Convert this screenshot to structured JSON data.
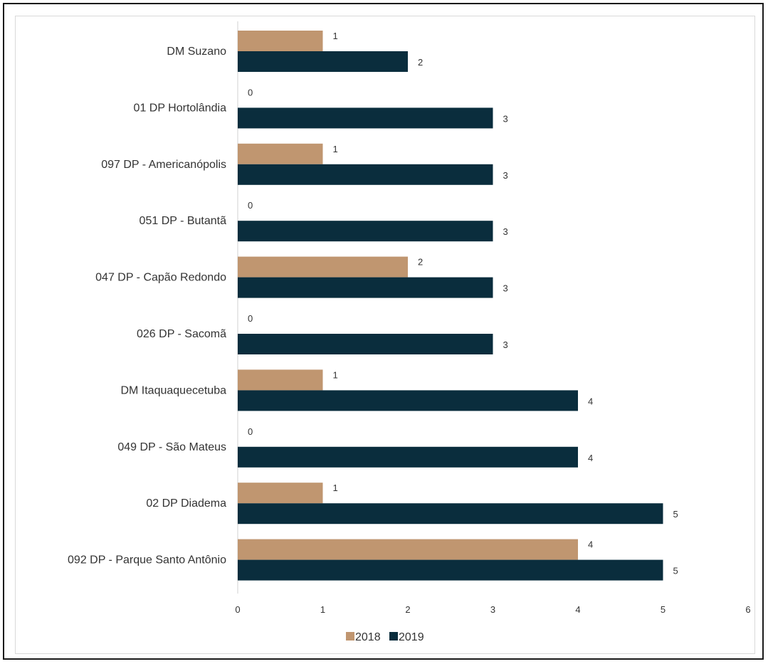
{
  "chart_data": {
    "type": "bar",
    "orientation": "horizontal",
    "categories": [
      "DM Suzano",
      "01 DP Hortolândia",
      "097 DP - Americanópolis",
      "051 DP - Butantã",
      "047 DP - Capão Redondo",
      "026 DP - Sacomã",
      "DM Itaquaquecetuba",
      "049 DP - São Mateus",
      "02 DP Diadema",
      "092 DP - Parque Santo Antônio"
    ],
    "series": [
      {
        "name": "2018",
        "color": "#c09670",
        "values": [
          1,
          0,
          1,
          0,
          2,
          0,
          1,
          0,
          1,
          4
        ]
      },
      {
        "name": "2019",
        "color": "#0a2d3d",
        "values": [
          2,
          3,
          3,
          3,
          3,
          3,
          4,
          4,
          5,
          5
        ]
      }
    ],
    "xlim": [
      0,
      6
    ],
    "xticks": [
      "0",
      "1",
      "2",
      "3",
      "4",
      "5",
      "6"
    ],
    "grid": false,
    "data_labels": true,
    "legend_position": "bottom"
  }
}
